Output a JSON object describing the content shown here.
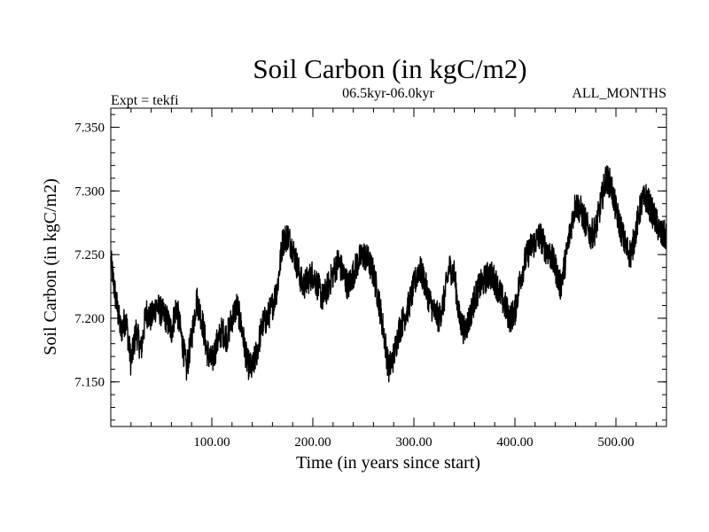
{
  "chart_data": {
    "type": "line",
    "title": "Soil Carbon (in kgC/m2)",
    "subtitle": "06.5kyr-06.0kyr",
    "left_note": "Expt = tekfi",
    "right_note": "ALL_MONTHS",
    "xlabel": "Time (in years since start)",
    "ylabel": "Soil Carbon (in kgC/m2)",
    "xlim": [
      0,
      550
    ],
    "ylim": [
      7.115,
      7.365
    ],
    "x_ticks": [
      100,
      200,
      300,
      400,
      500
    ],
    "x_tick_labels": [
      "100.00",
      "200.00",
      "300.00",
      "400.00",
      "500.00"
    ],
    "y_ticks": [
      7.15,
      7.2,
      7.25,
      7.3,
      7.35
    ],
    "y_tick_labels": [
      "7.150",
      "7.200",
      "7.250",
      "7.300",
      "7.350"
    ],
    "line_color": "#000000",
    "series": [
      {
        "name": "Soil Carbon",
        "noise_amplitude": 0.012,
        "x": [
          0,
          5,
          10,
          15,
          20,
          25,
          30,
          35,
          40,
          45,
          50,
          55,
          60,
          65,
          70,
          75,
          80,
          85,
          90,
          95,
          100,
          105,
          110,
          115,
          120,
          125,
          130,
          135,
          140,
          145,
          150,
          155,
          160,
          165,
          170,
          175,
          180,
          185,
          190,
          195,
          200,
          205,
          210,
          215,
          220,
          225,
          230,
          235,
          240,
          245,
          250,
          255,
          260,
          265,
          270,
          275,
          280,
          285,
          290,
          295,
          300,
          305,
          310,
          315,
          320,
          325,
          330,
          335,
          340,
          345,
          350,
          355,
          360,
          365,
          370,
          375,
          380,
          385,
          390,
          395,
          400,
          405,
          410,
          415,
          420,
          425,
          430,
          435,
          440,
          445,
          450,
          455,
          460,
          465,
          470,
          475,
          480,
          485,
          490,
          495,
          500,
          505,
          510,
          515,
          520,
          525,
          530,
          535,
          540,
          545,
          550
        ],
        "values": [
          7.245,
          7.215,
          7.19,
          7.2,
          7.165,
          7.19,
          7.175,
          7.205,
          7.2,
          7.21,
          7.205,
          7.2,
          7.19,
          7.21,
          7.185,
          7.16,
          7.185,
          7.215,
          7.2,
          7.175,
          7.165,
          7.18,
          7.19,
          7.185,
          7.2,
          7.21,
          7.19,
          7.165,
          7.16,
          7.175,
          7.195,
          7.2,
          7.21,
          7.225,
          7.26,
          7.265,
          7.255,
          7.24,
          7.225,
          7.23,
          7.235,
          7.225,
          7.215,
          7.225,
          7.235,
          7.245,
          7.235,
          7.225,
          7.235,
          7.245,
          7.25,
          7.245,
          7.235,
          7.215,
          7.19,
          7.16,
          7.17,
          7.19,
          7.2,
          7.21,
          7.225,
          7.24,
          7.23,
          7.215,
          7.205,
          7.2,
          7.215,
          7.24,
          7.235,
          7.2,
          7.19,
          7.2,
          7.215,
          7.225,
          7.23,
          7.235,
          7.23,
          7.22,
          7.21,
          7.2,
          7.205,
          7.23,
          7.245,
          7.255,
          7.26,
          7.265,
          7.255,
          7.25,
          7.24,
          7.225,
          7.245,
          7.27,
          7.29,
          7.285,
          7.275,
          7.265,
          7.27,
          7.29,
          7.31,
          7.305,
          7.285,
          7.27,
          7.255,
          7.25,
          7.27,
          7.29,
          7.295,
          7.285,
          7.275,
          7.265,
          7.265
        ]
      }
    ]
  }
}
